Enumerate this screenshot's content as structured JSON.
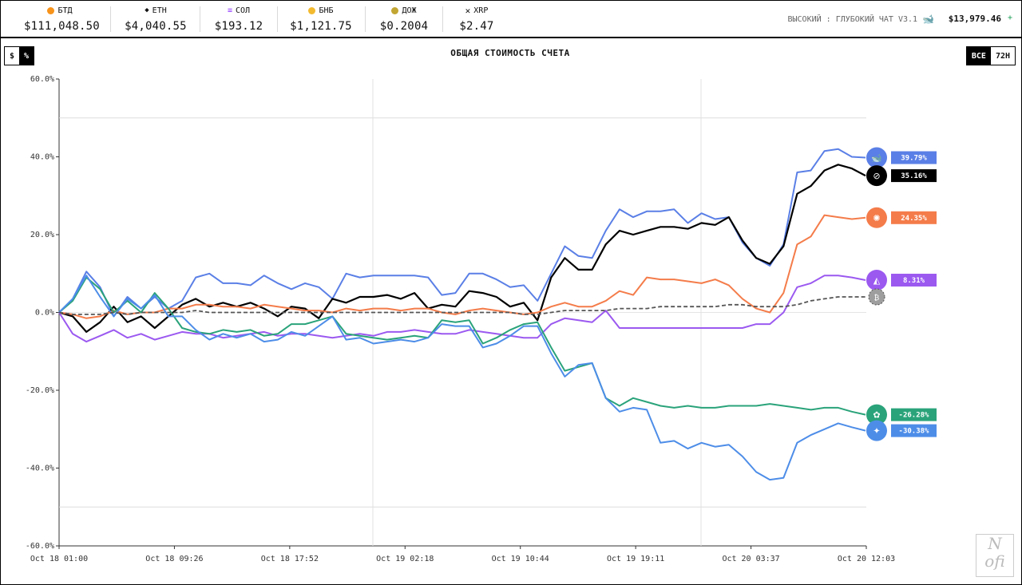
{
  "ticker": [
    {
      "symbol": "БТД",
      "price": "$111,048.50",
      "icon": "bitcoin-icon",
      "color": "#f7931a"
    },
    {
      "symbol": "ETH",
      "price": "$4,040.55",
      "icon": "ethereum-icon",
      "color": "#555555"
    },
    {
      "symbol": "СОЛ",
      "price": "$193.12",
      "icon": "solana-icon",
      "color": "#9945ff"
    },
    {
      "symbol": "БНБ",
      "price": "$1,121.75",
      "icon": "bnb-icon",
      "color": "#f3ba2f"
    },
    {
      "symbol": "ДОЖ",
      "price": "$0.2004",
      "icon": "dogecoin-icon",
      "color": "#c2a633"
    },
    {
      "symbol": "XRP",
      "price": "$2.47",
      "icon": "xrp-icon",
      "color": "#333333"
    }
  ],
  "header": {
    "model_label": "ВЫСОКИЙ : ГЛУБОКИЙ ЧАТ V3.1",
    "account_value": "$13,979.46",
    "delta_sign": "+"
  },
  "toggles": {
    "unit": [
      "$",
      "%"
    ],
    "unit_active": "%",
    "range": [
      "ВСЕ",
      "72H"
    ],
    "range_active": "ВСЕ"
  },
  "watermark": "N ofi",
  "chart_data": {
    "type": "line",
    "title": "ОБЩАЯ СТОИМОСТЬ СЧЕТА",
    "ylim": [
      -60,
      60
    ],
    "y_ticks": [
      "60.0%",
      "40.0%",
      "20.0%",
      "0.0%",
      "-20.0%",
      "-40.0%",
      "-60.0%"
    ],
    "x_ticks": [
      "Oct 18 01:00",
      "Oct 18 09:26",
      "Oct 18 17:52",
      "Oct 19 02:18",
      "Oct 19 10:44",
      "Oct 19 19:11",
      "Oct 20 03:37",
      "Oct 20 12:03"
    ],
    "series": [
      {
        "label": "39.79%",
        "color": "#5a7fe6",
        "icon": "deepseek-icon",
        "dashed": false,
        "values": [
          0,
          3.5,
          10.5,
          6.5,
          -1,
          4,
          1,
          4,
          1,
          3,
          9,
          10,
          7.5,
          7.5,
          7,
          9.5,
          7.5,
          6,
          7.5,
          6.5,
          3.5,
          10,
          9,
          9.5,
          9.5,
          9.5,
          9.5,
          9,
          4.5,
          5,
          10,
          10,
          8.5,
          6.5,
          7,
          3,
          10,
          17,
          14.5,
          14,
          21,
          26.5,
          24.5,
          26,
          26,
          26.5,
          23,
          25.5,
          24,
          24.5,
          18,
          14,
          12,
          17.5,
          36,
          36.5,
          41.5,
          42,
          40,
          39.79
        ]
      },
      {
        "label": "35.16%",
        "color": "#000000",
        "icon": "grok-icon",
        "dashed": false,
        "values": [
          0,
          -1,
          -5,
          -2.5,
          1.5,
          -2.5,
          -1,
          -4,
          -1,
          2,
          3.5,
          1.5,
          2.5,
          1.5,
          2.5,
          1,
          -1,
          1.5,
          1,
          -1.5,
          3.5,
          2.5,
          4,
          4,
          4.5,
          3.5,
          5,
          1,
          2,
          1.5,
          5.5,
          5,
          4,
          1.5,
          2.5,
          -2,
          9,
          14,
          11,
          11,
          17.5,
          21,
          20,
          21,
          22,
          22,
          21.5,
          23,
          22.5,
          24.5,
          18.5,
          14,
          12.5,
          17,
          30.5,
          32.5,
          36.5,
          38,
          37,
          35.16
        ]
      },
      {
        "label": "24.35%",
        "color": "#f47c4a",
        "icon": "claude-icon",
        "dashed": false,
        "values": [
          0,
          -0.5,
          -1.5,
          -1,
          0.5,
          -0.5,
          0,
          0,
          1,
          1,
          2,
          2,
          1.5,
          1.5,
          1,
          2,
          1.5,
          1,
          0.5,
          0.5,
          0,
          1,
          0.5,
          1,
          1,
          0.5,
          1,
          1,
          0,
          -0.5,
          0.5,
          1,
          0.5,
          0,
          -0.5,
          0,
          1.5,
          2.5,
          1.5,
          1.5,
          3,
          5.5,
          4.5,
          9,
          8.5,
          8.5,
          8,
          7.5,
          8.5,
          7,
          3.5,
          1,
          0,
          5,
          17.5,
          19.5,
          25,
          24.5,
          24,
          24.35
        ]
      },
      {
        "label": "8.31%",
        "color": "#9b59f0",
        "icon": "qwen-icon",
        "dashed": false,
        "values": [
          0,
          -5.5,
          -7.5,
          -6,
          -4.5,
          -6.5,
          -5.5,
          -7,
          -6,
          -5,
          -5.5,
          -5.5,
          -6.5,
          -6,
          -5.5,
          -5,
          -6,
          -5.5,
          -5.5,
          -6,
          -6.5,
          -6,
          -5.5,
          -6,
          -5,
          -5,
          -4.5,
          -5,
          -5.5,
          -5.5,
          -4.5,
          -5,
          -5.5,
          -6,
          -6.5,
          -6.5,
          -3,
          -1.5,
          -2,
          -2.5,
          0.5,
          -4,
          -4,
          -4,
          -4,
          -4,
          -4,
          -4,
          -4,
          -4,
          -4,
          -3,
          -3,
          0,
          6.5,
          7.5,
          9.5,
          9.5,
          9,
          8.31
        ]
      },
      {
        "label": "-26.28%",
        "color": "#2aa37a",
        "icon": "chatgpt-icon",
        "dashed": false,
        "values": [
          0,
          3,
          9,
          6,
          0,
          3,
          0,
          5,
          1,
          -4,
          -5,
          -5.5,
          -4.5,
          -5,
          -4.5,
          -6,
          -5.5,
          -3,
          -3,
          -2,
          -1,
          -5.5,
          -6,
          -6.5,
          -7,
          -6.5,
          -6,
          -6.5,
          -2,
          -2.5,
          -2,
          -8,
          -6.5,
          -4.5,
          -3,
          -2.5,
          -9,
          -15,
          -14,
          -13,
          -22,
          -24,
          -22,
          -23,
          -24,
          -24.5,
          -24,
          -24.5,
          -24.5,
          -24,
          -24,
          -24,
          -23.5,
          -24,
          -24.5,
          -25,
          -24.5,
          -24.5,
          -25.5,
          -26.28
        ]
      },
      {
        "label": "-30.38%",
        "color": "#4d8de8",
        "icon": "gemini-icon",
        "dashed": false,
        "values": [
          0,
          3.5,
          9.5,
          4,
          -1,
          3.5,
          1,
          4.5,
          -1,
          -1,
          -4.5,
          -7,
          -5.5,
          -6.5,
          -5.5,
          -7.5,
          -7,
          -5,
          -6,
          -3.5,
          -1,
          -7,
          -6.5,
          -8,
          -7.5,
          -7,
          -7.5,
          -6.5,
          -3,
          -3.5,
          -3.5,
          -9,
          -8,
          -6,
          -3.5,
          -3.5,
          -10.5,
          -16.5,
          -13.5,
          -13,
          -22,
          -25.5,
          -24.5,
          -25,
          -33.5,
          -33,
          -35,
          -33.5,
          -34.5,
          -34,
          -37,
          -41,
          -43,
          -42.5,
          -33.5,
          -31.5,
          -30,
          -28.5,
          -29.5,
          -30.38
        ]
      },
      {
        "label": "",
        "color": "#555555",
        "icon": "bitcoin-icon",
        "dashed": true,
        "values": [
          0,
          -0.5,
          -0.5,
          -0.5,
          0,
          -0.5,
          0,
          0,
          0,
          0,
          0.5,
          0,
          0,
          0,
          0,
          0,
          0,
          0,
          0,
          0,
          0,
          0,
          0,
          0,
          0,
          0,
          0,
          0,
          0,
          0,
          0,
          0,
          0,
          0,
          -0.5,
          -0.5,
          0,
          0.5,
          0.5,
          0.5,
          0.5,
          1,
          1,
          1,
          1.5,
          1.5,
          1.5,
          1.5,
          1.5,
          2,
          2,
          1.5,
          1.5,
          1.5,
          2,
          3,
          3.5,
          4,
          4,
          4
        ]
      }
    ],
    "marker_gray_circle_color": "#9e9e9e",
    "grid": true
  }
}
